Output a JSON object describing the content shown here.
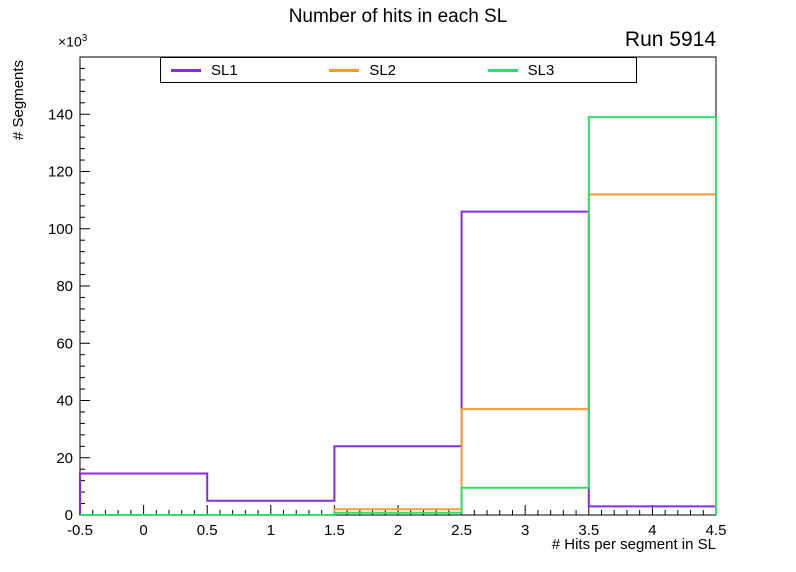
{
  "chart_data": {
    "type": "step-histogram",
    "title": "Number of hits in each SL",
    "annotation": "Run 5914",
    "y_multiplier_base": "×10",
    "y_multiplier_exp": "3",
    "xlabel": "# Hits per segment in SL",
    "ylabel": "# Segments",
    "xlim": [
      -0.5,
      4.5
    ],
    "ylim": [
      0,
      160
    ],
    "bin_edges": [
      -0.5,
      0.5,
      1.5,
      2.5,
      3.5,
      4.5
    ],
    "xticks": [
      -0.5,
      0,
      0.5,
      1,
      1.5,
      2,
      2.5,
      3,
      3.5,
      4,
      4.5
    ],
    "yticks": [
      0,
      20,
      40,
      60,
      80,
      100,
      120,
      140
    ],
    "x_minor_step": 0.1,
    "y_minor_step": 4,
    "grid": false,
    "units_note": "y values in thousands of segments",
    "series": [
      {
        "name": "SL1",
        "color": "#8a2be2",
        "values": [
          14.5,
          5,
          24,
          106,
          3
        ]
      },
      {
        "name": "SL2",
        "color": "#ff9933",
        "values": [
          0,
          0,
          2,
          37,
          112
        ]
      },
      {
        "name": "SL3",
        "color": "#33dd66",
        "values": [
          0,
          0,
          0.8,
          9.5,
          139
        ]
      }
    ],
    "legend": {
      "position": "top",
      "entries": [
        "SL1",
        "SL2",
        "SL3"
      ]
    }
  }
}
